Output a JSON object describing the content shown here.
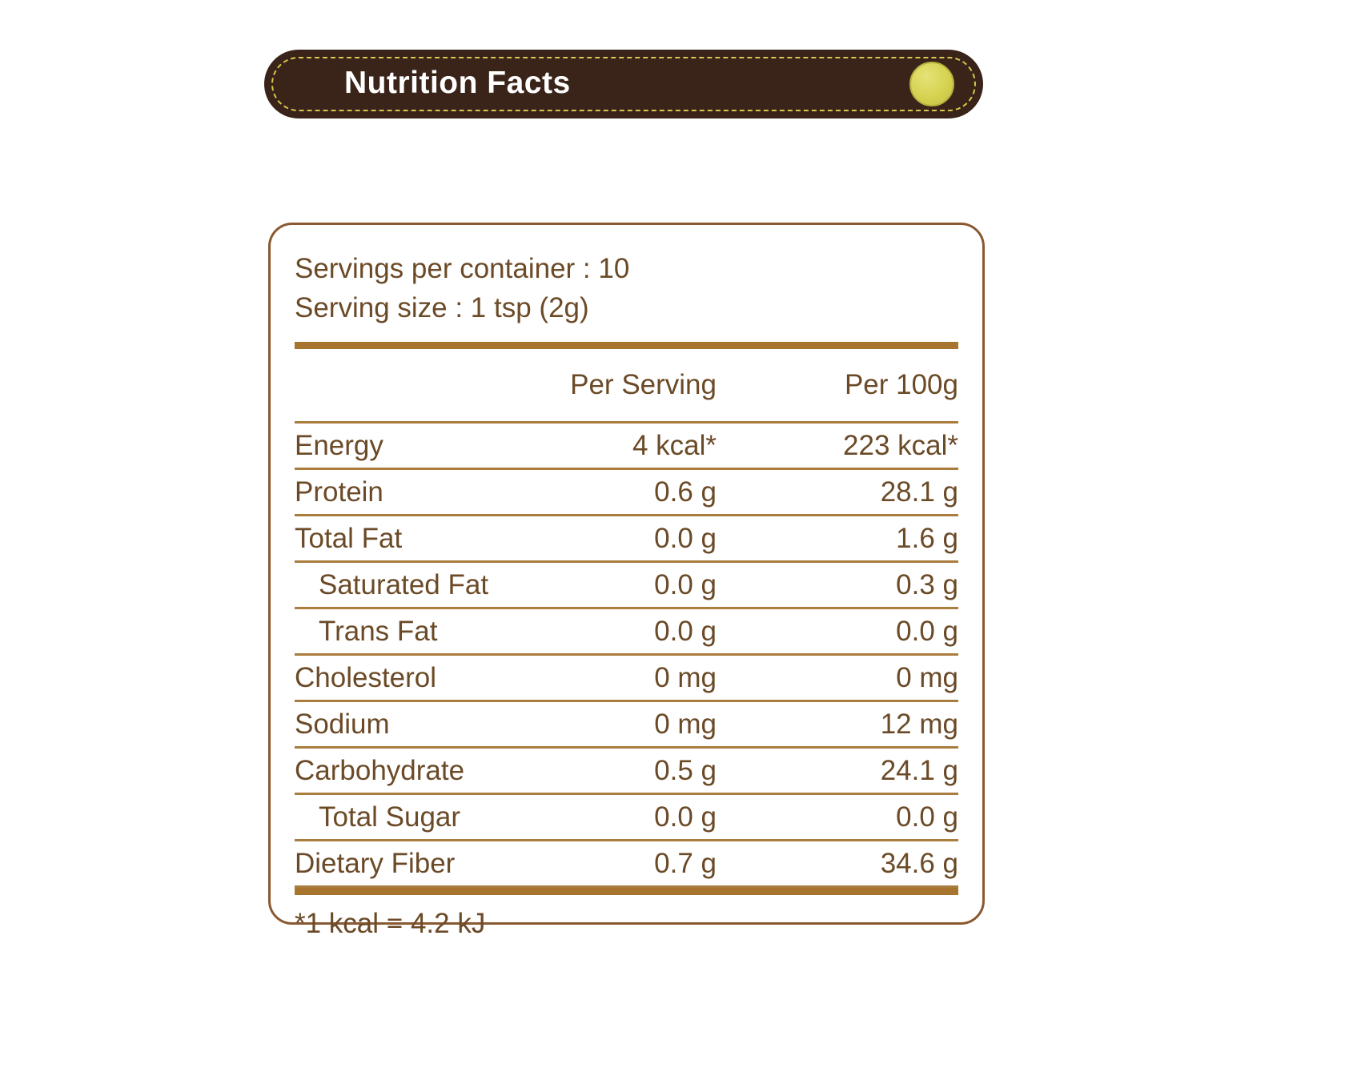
{
  "banner": {
    "title": "Nutrition Facts"
  },
  "panel": {
    "servings_line": "Servings per container : 10",
    "serving_size_line": "Serving size : 1 tsp (2g)",
    "columns": {
      "per_serving": "Per Serving",
      "per_100g": "Per 100g"
    },
    "rows": [
      {
        "label": "Energy",
        "per_serving": "4 kcal*",
        "per_100g": "223 kcal*",
        "indent": false
      },
      {
        "label": "Protein",
        "per_serving": "0.6 g",
        "per_100g": "28.1 g",
        "indent": false
      },
      {
        "label": "Total Fat",
        "per_serving": "0.0 g",
        "per_100g": "1.6 g",
        "indent": false
      },
      {
        "label": "Saturated Fat",
        "per_serving": "0.0 g",
        "per_100g": "0.3 g",
        "indent": true
      },
      {
        "label": "Trans Fat",
        "per_serving": "0.0 g",
        "per_100g": "0.0 g",
        "indent": true
      },
      {
        "label": "Cholesterol",
        "per_serving": "0 mg",
        "per_100g": "0 mg",
        "indent": false
      },
      {
        "label": "Sodium",
        "per_serving": "0 mg",
        "per_100g": "12 mg",
        "indent": false
      },
      {
        "label": "Carbohydrate",
        "per_serving": "0.5 g",
        "per_100g": "24.1 g",
        "indent": false
      },
      {
        "label": "Total Sugar",
        "per_serving": "0.0 g",
        "per_100g": "0.0 g",
        "indent": true
      },
      {
        "label": "Dietary Fiber",
        "per_serving": "0.7 g",
        "per_100g": "34.6 g",
        "indent": false
      }
    ],
    "footnote": "*1 kcal = 4.2 kJ"
  },
  "colors": {
    "banner_bg": "#3a2318",
    "banner_text": "#ffffff",
    "dash": "#d8c84e",
    "dot": "#d6d251",
    "panel_border": "#8a5930",
    "text": "#6b4a27",
    "thin_line": "#aa7c3d",
    "thick_line": "#a8752e"
  }
}
